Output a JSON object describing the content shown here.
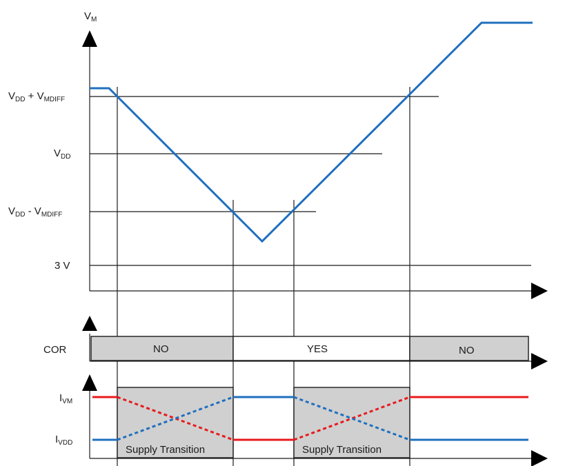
{
  "vm_axis": {
    "label": {
      "main": "V",
      "sub": "M"
    }
  },
  "levels": {
    "vdd_plus": {
      "p1": "V",
      "s1": "DD",
      "op": " + V",
      "s2": "MDIFF"
    },
    "vdd": {
      "p1": "V",
      "s1": "DD"
    },
    "vdd_minus": {
      "p1": "V",
      "s1": "DD",
      "op": " - V",
      "s2": "MDIFF"
    },
    "three_v": "3 V"
  },
  "cor": {
    "label": "COR",
    "segments": [
      "NO",
      "YES",
      "NO"
    ]
  },
  "current": {
    "ivm": {
      "main": "I",
      "sub": "VM"
    },
    "ivdd": {
      "main": "I",
      "sub": "VDD"
    },
    "transition_label": "Supply Transition"
  },
  "colors": {
    "vm_trace": "#1f6fbf",
    "ivm_trace": "#e8191c",
    "ivdd_trace": "#1f6fbf",
    "shaded": "#d0d0d0",
    "axis": "#1a1a1a"
  }
}
